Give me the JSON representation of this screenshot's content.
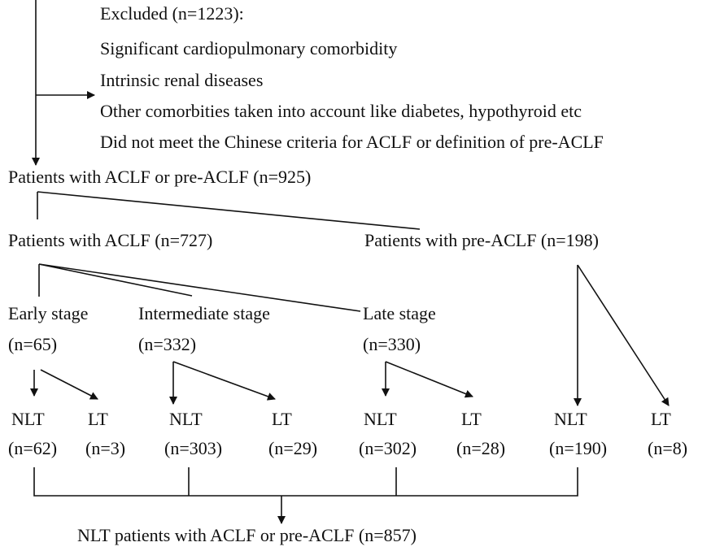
{
  "excluded": {
    "title": "Excluded (n=1223):",
    "reasons": [
      "Significant cardiopulmonary comorbidity",
      "Intrinsic renal diseases",
      "Other comorbities taken into account like diabetes, hypothyroid etc",
      "Did not meet the Chinese criteria for ACLF or definition of pre-ACLF"
    ]
  },
  "total": "Patients with ACLF or pre-ACLF (n=925)",
  "aclf": "Patients with ACLF (n=727)",
  "pre_aclf": "Patients with pre-ACLF (n=198)",
  "stages": [
    {
      "name": "Early stage",
      "n": "(n=65)",
      "nlt": "NLT",
      "nlt_n": "(n=62)",
      "lt": "LT",
      "lt_n": "(n=3)"
    },
    {
      "name": "Intermediate stage",
      "n": "(n=332)",
      "nlt": "NLT",
      "nlt_n": "(n=303)",
      "lt": "LT",
      "lt_n": "(n=29)"
    },
    {
      "name": "Late stage",
      "n": "(n=330)",
      "nlt": "NLT",
      "nlt_n": "(n=302)",
      "lt": "LT",
      "lt_n": "(n=28)"
    }
  ],
  "pre_aclf_outcome": {
    "nlt": "NLT",
    "nlt_n": "(n=190)",
    "lt": "LT",
    "lt_n": "(n=8)"
  },
  "final": "NLT patients with ACLF or pre-ACLF (n=857)"
}
